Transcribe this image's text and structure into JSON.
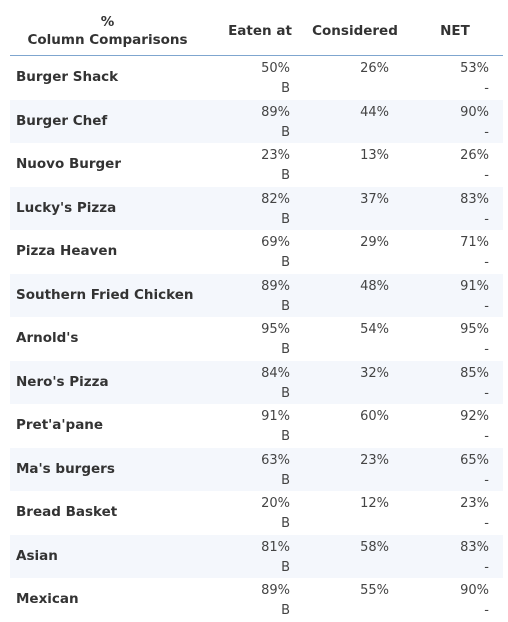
{
  "header": {
    "row_label_line1": "%",
    "row_label_line2": "Column Comparisons",
    "columns": [
      "Eaten at",
      "Considered",
      "NET"
    ]
  },
  "rows": [
    {
      "label": "Burger Shack",
      "eaten": "50%",
      "eaten_sig": "B",
      "considered": "26%",
      "considered_sig": "",
      "net": "53%",
      "net_sig": "-"
    },
    {
      "label": "Burger Chef",
      "eaten": "89%",
      "eaten_sig": "B",
      "considered": "44%",
      "considered_sig": "",
      "net": "90%",
      "net_sig": "-"
    },
    {
      "label": "Nuovo Burger",
      "eaten": "23%",
      "eaten_sig": "B",
      "considered": "13%",
      "considered_sig": "",
      "net": "26%",
      "net_sig": "-"
    },
    {
      "label": "Lucky's Pizza",
      "eaten": "82%",
      "eaten_sig": "B",
      "considered": "37%",
      "considered_sig": "",
      "net": "83%",
      "net_sig": "-"
    },
    {
      "label": "Pizza Heaven",
      "eaten": "69%",
      "eaten_sig": "B",
      "considered": "29%",
      "considered_sig": "",
      "net": "71%",
      "net_sig": "-"
    },
    {
      "label": "Southern Fried Chicken",
      "eaten": "89%",
      "eaten_sig": "B",
      "considered": "48%",
      "considered_sig": "",
      "net": "91%",
      "net_sig": "-"
    },
    {
      "label": "Arnold's",
      "eaten": "95%",
      "eaten_sig": "B",
      "considered": "54%",
      "considered_sig": "",
      "net": "95%",
      "net_sig": "-"
    },
    {
      "label": "Nero's Pizza",
      "eaten": "84%",
      "eaten_sig": "B",
      "considered": "32%",
      "considered_sig": "",
      "net": "85%",
      "net_sig": "-"
    },
    {
      "label": "Pret'a'pane",
      "eaten": "91%",
      "eaten_sig": "B",
      "considered": "60%",
      "considered_sig": "",
      "net": "92%",
      "net_sig": "-"
    },
    {
      "label": "Ma's burgers",
      "eaten": "63%",
      "eaten_sig": "B",
      "considered": "23%",
      "considered_sig": "",
      "net": "65%",
      "net_sig": "-"
    },
    {
      "label": "Bread Basket",
      "eaten": "20%",
      "eaten_sig": "B",
      "considered": "12%",
      "considered_sig": "",
      "net": "23%",
      "net_sig": "-"
    },
    {
      "label": "Asian",
      "eaten": "81%",
      "eaten_sig": "B",
      "considered": "58%",
      "considered_sig": "",
      "net": "83%",
      "net_sig": "-"
    },
    {
      "label": "Mexican",
      "eaten": "89%",
      "eaten_sig": "B",
      "considered": "55%",
      "considered_sig": "",
      "net": "90%",
      "net_sig": "-"
    }
  ]
}
